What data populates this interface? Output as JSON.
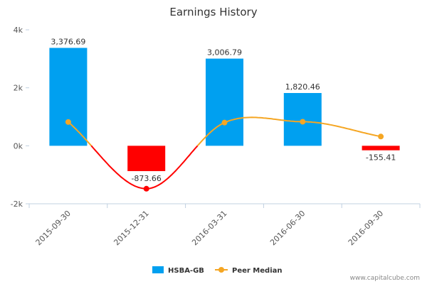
{
  "chart_data": {
    "type": "bar",
    "title": "Earnings History",
    "categories": [
      "2015-09-30",
      "2015-12-31",
      "2016-03-31",
      "2016-06-30",
      "2016-09-30"
    ],
    "series": [
      {
        "name": "HSBA-GB",
        "type": "bar",
        "values": [
          3376.69,
          -873.66,
          3006.79,
          1820.46,
          -155.41
        ],
        "labels": [
          "3,376.69",
          "-873.66",
          "3,006.79",
          "1,820.46",
          "-155.41"
        ],
        "positive_color": "#00a0f0",
        "negative_color": "#ff0000"
      },
      {
        "name": "Peer Median",
        "type": "line",
        "values": [
          820,
          -1480,
          800,
          830,
          320
        ],
        "positive_color": "#f5a623",
        "negative_color": "#ff0000"
      }
    ],
    "ylim": [
      -2000,
      4000
    ],
    "yticks": [
      -2000,
      0,
      2000,
      4000
    ],
    "ytick_labels": [
      "-2k",
      "0k",
      "2k",
      "4k"
    ],
    "grid": false,
    "legend_position": "bottom-center"
  },
  "legend": {
    "items": [
      {
        "label": "HSBA-GB",
        "color": "#00a0f0"
      },
      {
        "label": "Peer Median",
        "color": "#f5a623"
      }
    ]
  },
  "credit": "www.capitalcube.com"
}
